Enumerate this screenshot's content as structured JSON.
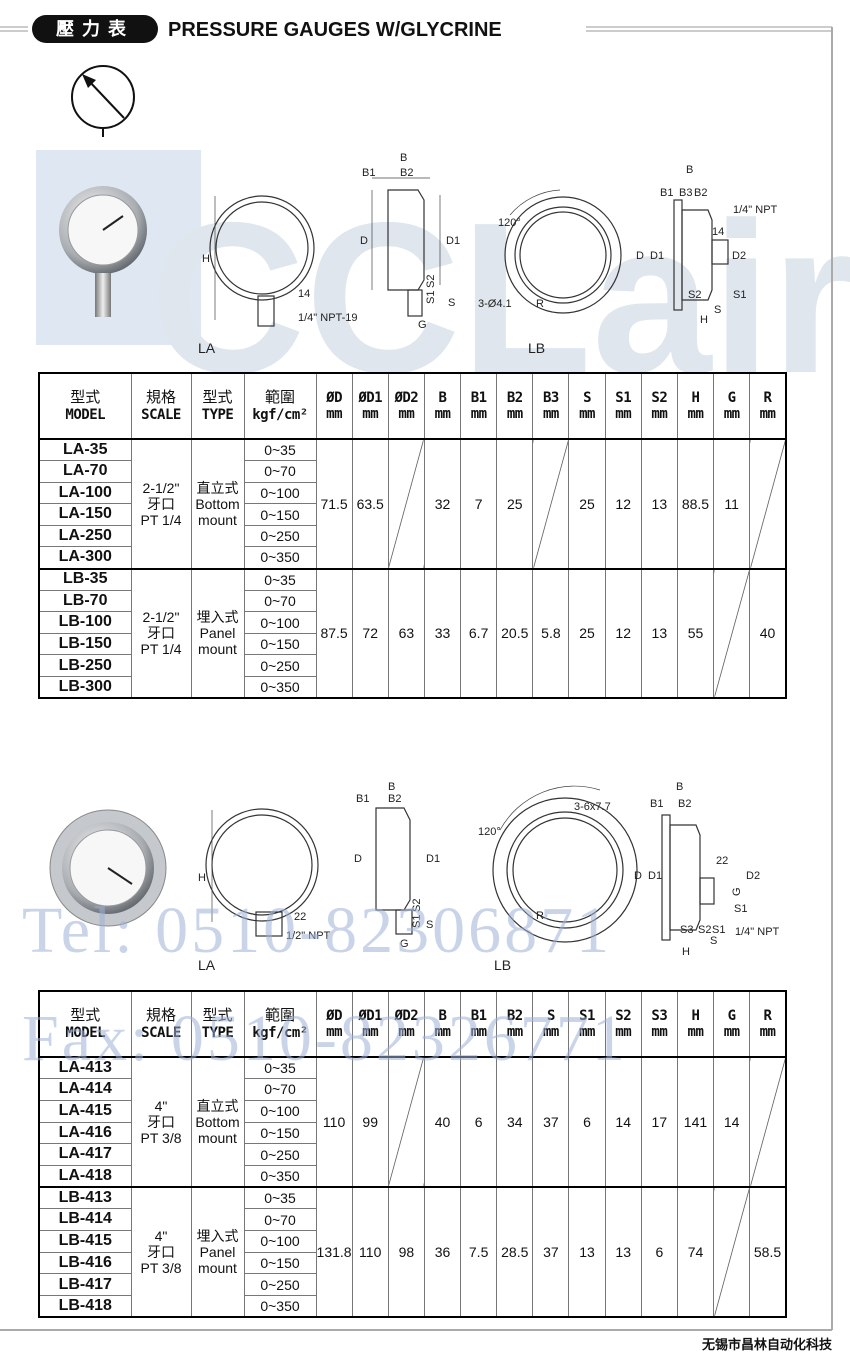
{
  "header": {
    "badge": "壓力表",
    "title": "PRESSURE GAUGES W/GLYCRINE"
  },
  "watermark": {
    "logo": "CCLair",
    "tel": "Tel: 0510-82306871",
    "fax": "Fax: 0510-82326771"
  },
  "figure1": {
    "la": {
      "caption": "LA",
      "labels": [
        "H",
        "14",
        "1/4\" NPT-19",
        "B",
        "B1",
        "B2",
        "D",
        "D1",
        "S1",
        "S2",
        "S",
        "G"
      ]
    },
    "lb": {
      "caption": "LB",
      "labels": [
        "120°",
        "3-Ø4.1",
        "R",
        "B",
        "B1",
        "B3",
        "B2",
        "1/4\" NPT",
        "14",
        "D",
        "D1",
        "D2",
        "S2",
        "S1",
        "S",
        "H"
      ]
    }
  },
  "figure2": {
    "la": {
      "caption": "LA",
      "labels": [
        "H",
        "22",
        "1/2\" NPT",
        "B",
        "B1",
        "B2",
        "D",
        "D1",
        "S1",
        "S2",
        "S",
        "G"
      ]
    },
    "lb": {
      "caption": "LB",
      "labels": [
        "3-6x7.7",
        "120°",
        "R",
        "B",
        "B1",
        "B2",
        "D",
        "D1",
        "22",
        "D2",
        "G",
        "S1",
        "S3",
        "S2",
        "S1",
        "S",
        "1/4\" NPT",
        "H"
      ]
    }
  },
  "tables": [
    {
      "head_left": [
        [
          "型式",
          "MODEL"
        ],
        [
          "規格",
          "SCALE"
        ],
        [
          "型式",
          "TYPE"
        ],
        [
          "範圍",
          "kgf/cm²"
        ]
      ],
      "dims": [
        {
          "name": "ØD",
          "unit": "mm"
        },
        {
          "name": "ØD1",
          "unit": "mm"
        },
        {
          "name": "ØD2",
          "unit": "mm"
        },
        {
          "name": "B",
          "unit": "mm"
        },
        {
          "name": "B1",
          "unit": "mm"
        },
        {
          "name": "B2",
          "unit": "mm"
        },
        {
          "name": "B3",
          "unit": "mm"
        },
        {
          "name": "S",
          "unit": "mm"
        },
        {
          "name": "S1",
          "unit": "mm"
        },
        {
          "name": "S2",
          "unit": "mm"
        },
        {
          "name": "H",
          "unit": "mm"
        },
        {
          "name": "G",
          "unit": "mm"
        },
        {
          "name": "R",
          "unit": "mm"
        }
      ],
      "groups": [
        {
          "models": [
            "LA-35",
            "LA-70",
            "LA-100",
            "LA-150",
            "LA-250",
            "LA-300"
          ],
          "scale": [
            "2-1/2\"",
            "牙口",
            "PT 1/4"
          ],
          "type": [
            "直立式",
            "Bottom",
            "mount"
          ],
          "ranges": [
            "0~35",
            "0~70",
            "0~100",
            "0~150",
            "0~250",
            "0~350"
          ],
          "values": [
            71.5,
            63.5,
            null,
            32,
            7,
            25,
            null,
            25,
            12,
            13,
            88.5,
            11,
            null
          ]
        },
        {
          "models": [
            "LB-35",
            "LB-70",
            "LB-100",
            "LB-150",
            "LB-250",
            "LB-300"
          ],
          "scale": [
            "2-1/2\"",
            "牙口",
            "PT 1/4"
          ],
          "type": [
            "埋入式",
            "Panel",
            "mount"
          ],
          "ranges": [
            "0~35",
            "0~70",
            "0~100",
            "0~150",
            "0~250",
            "0~350"
          ],
          "values": [
            87.5,
            72,
            63,
            33,
            6.7,
            20.5,
            5.8,
            25,
            12,
            13,
            55,
            null,
            40
          ]
        }
      ]
    },
    {
      "head_left": [
        [
          "型式",
          "MODEL"
        ],
        [
          "規格",
          "SCALE"
        ],
        [
          "型式",
          "TYPE"
        ],
        [
          "範圍",
          "kgf/cm²"
        ]
      ],
      "dims": [
        {
          "name": "ØD",
          "unit": "mm"
        },
        {
          "name": "ØD1",
          "unit": "mm"
        },
        {
          "name": "ØD2",
          "unit": "mm"
        },
        {
          "name": "B",
          "unit": "mm"
        },
        {
          "name": "B1",
          "unit": "mm"
        },
        {
          "name": "B2",
          "unit": "mm"
        },
        {
          "name": "S",
          "unit": "mm"
        },
        {
          "name": "S1",
          "unit": "mm"
        },
        {
          "name": "S2",
          "unit": "mm"
        },
        {
          "name": "S3",
          "unit": "mm"
        },
        {
          "name": "H",
          "unit": "mm"
        },
        {
          "name": "G",
          "unit": "mm"
        },
        {
          "name": "R",
          "unit": "mm"
        }
      ],
      "groups": [
        {
          "models": [
            "LA-413",
            "LA-414",
            "LA-415",
            "LA-416",
            "LA-417",
            "LA-418"
          ],
          "scale": [
            "4\"",
            "牙口",
            "PT 3/8"
          ],
          "type": [
            "直立式",
            "Bottom",
            "mount"
          ],
          "ranges": [
            "0~35",
            "0~70",
            "0~100",
            "0~150",
            "0~250",
            "0~350"
          ],
          "values": [
            110,
            99,
            null,
            40,
            6,
            34,
            37,
            6,
            14,
            17,
            141,
            14,
            null
          ]
        },
        {
          "models": [
            "LB-413",
            "LB-414",
            "LB-415",
            "LB-416",
            "LB-417",
            "LB-418"
          ],
          "scale": [
            "4\"",
            "牙口",
            "PT 3/8"
          ],
          "type": [
            "埋入式",
            "Panel",
            "mount"
          ],
          "ranges": [
            "0~35",
            "0~70",
            "0~100",
            "0~150",
            "0~250",
            "0~350"
          ],
          "values": [
            131.8,
            110,
            98,
            36,
            7.5,
            28.5,
            37,
            13,
            13,
            6,
            74,
            null,
            58.5
          ]
        }
      ]
    }
  ],
  "footer": "无锡市昌林自动化科技"
}
